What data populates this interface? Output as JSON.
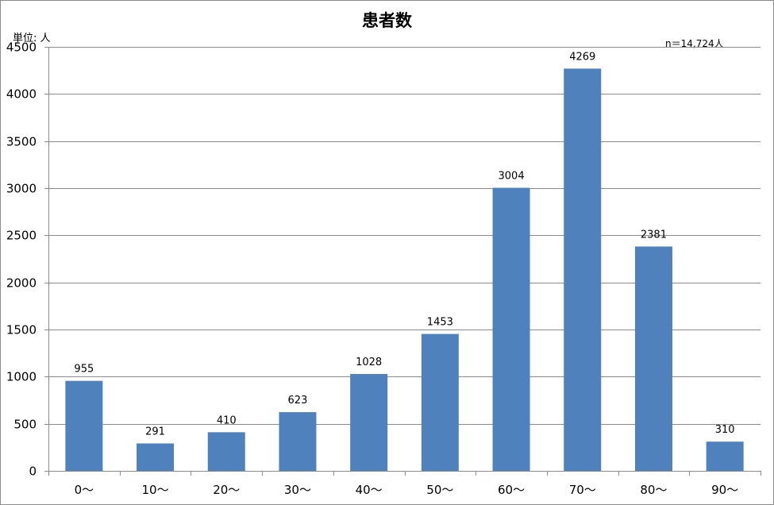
{
  "chart_data": {
    "type": "bar",
    "title": "患者数",
    "unit_label": "単位: 人",
    "annotation": "n＝14,724人",
    "categories": [
      "0～",
      "10～",
      "20～",
      "30～",
      "40～",
      "50～",
      "60～",
      "70～",
      "80～",
      "90～"
    ],
    "values": [
      955,
      291,
      410,
      623,
      1028,
      1453,
      3004,
      4269,
      2381,
      310
    ],
    "ylim": [
      0,
      4500
    ],
    "yticks": [
      0,
      500,
      1000,
      1500,
      2000,
      2500,
      3000,
      3500,
      4000,
      4500
    ],
    "grid": true,
    "legend": "none",
    "bar_color": "#4f81bd"
  }
}
